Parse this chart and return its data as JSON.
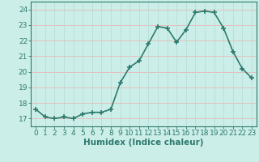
{
  "x": [
    0,
    1,
    2,
    3,
    4,
    5,
    6,
    7,
    8,
    9,
    10,
    11,
    12,
    13,
    14,
    15,
    16,
    17,
    18,
    19,
    20,
    21,
    22,
    23
  ],
  "y": [
    17.6,
    17.1,
    17.0,
    17.1,
    17.0,
    17.3,
    17.4,
    17.4,
    17.6,
    19.3,
    20.3,
    20.7,
    21.8,
    22.9,
    22.8,
    21.9,
    22.7,
    23.8,
    23.9,
    23.8,
    22.8,
    21.3,
    20.2,
    19.6
  ],
  "line_color": "#2d7a6e",
  "marker": "+",
  "marker_size": 4,
  "bg_color": "#cceee8",
  "grid_color_h": "#e8b8b8",
  "grid_color_v": "#b8ddd8",
  "xlabel": "Humidex (Indice chaleur)",
  "xlim": [
    -0.5,
    23.5
  ],
  "ylim": [
    16.5,
    24.5
  ],
  "yticks": [
    17,
    18,
    19,
    20,
    21,
    22,
    23,
    24
  ],
  "xticks": [
    0,
    1,
    2,
    3,
    4,
    5,
    6,
    7,
    8,
    9,
    10,
    11,
    12,
    13,
    14,
    15,
    16,
    17,
    18,
    19,
    20,
    21,
    22,
    23
  ],
  "tick_color": "#2d7a6e",
  "spine_color": "#2d7a6e",
  "tick_label_color": "#2d7a6e",
  "xlabel_color": "#2d7a6e",
  "xlabel_fontsize": 7.5,
  "tick_fontsize": 6.5,
  "line_width": 1.2
}
